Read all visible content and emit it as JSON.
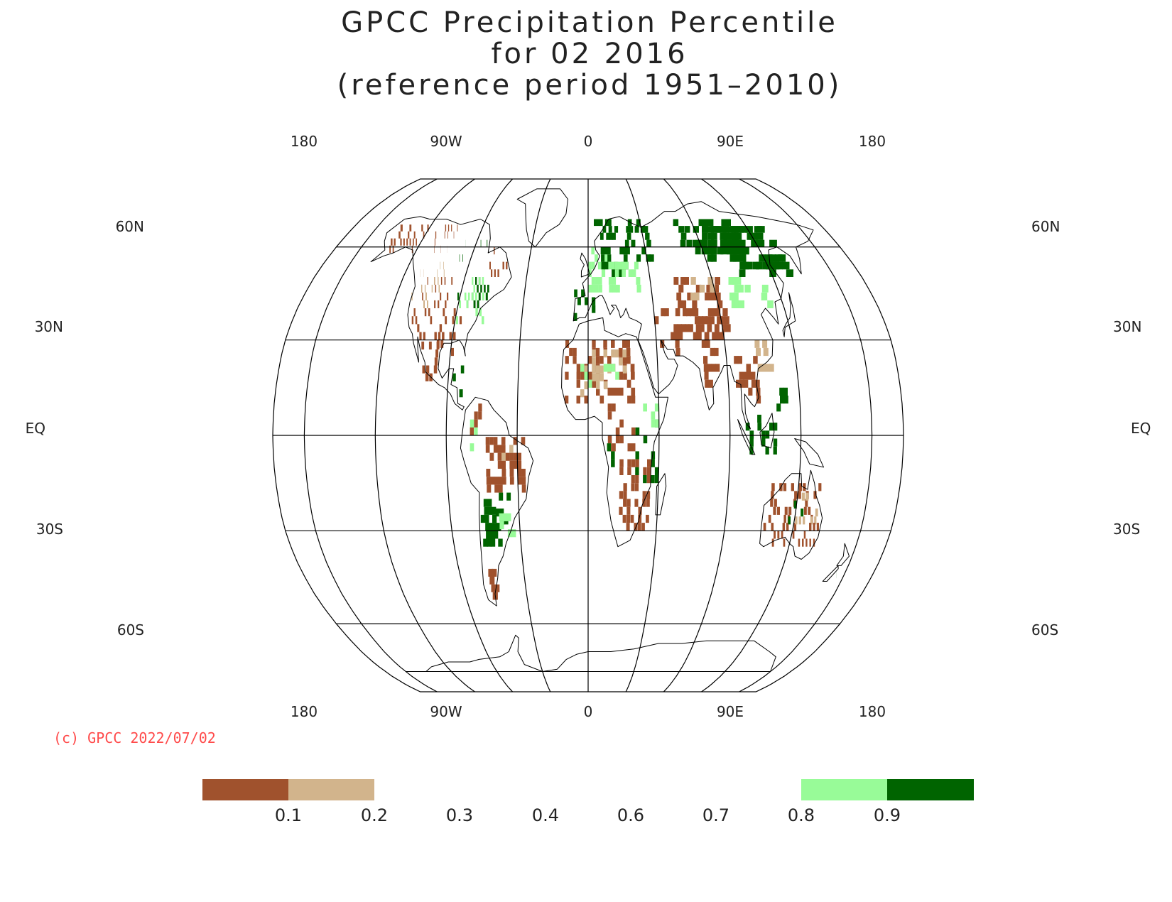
{
  "title": {
    "line1": "GPCC Precipitation Percentile",
    "line2": "for 02 2016",
    "line3": "(reference period 1951–2010)"
  },
  "copyright": "(c) GPCC 2022/07/02",
  "map": {
    "projection": "Robinson",
    "lon_labels_top": [
      "180",
      "90W",
      "0",
      "90E",
      "180"
    ],
    "lon_labels_bottom": [
      "180",
      "90W",
      "0",
      "90E",
      "180"
    ],
    "lat_labels": [
      "60N",
      "30N",
      "EQ",
      "30S",
      "60S"
    ]
  },
  "legend": {
    "bins": [
      {
        "range": "<0.1",
        "color": "#a0522d"
      },
      {
        "range": "0.1-0.2",
        "color": "#d2b48c"
      },
      {
        "range": "0.8-0.9",
        "color": "#98fb98"
      },
      {
        "range": ">0.9",
        "color": "#006400"
      }
    ],
    "tick_labels": [
      "0.1",
      "0.2",
      "0.3",
      "0.4",
      "0.6",
      "0.7",
      "0.8",
      "0.9"
    ]
  },
  "colors": {
    "very_dry": "#a0522d",
    "dry": "#d2b48c",
    "wet": "#98fb98",
    "very_wet": "#006400",
    "copyright": "#ff4a4a"
  }
}
